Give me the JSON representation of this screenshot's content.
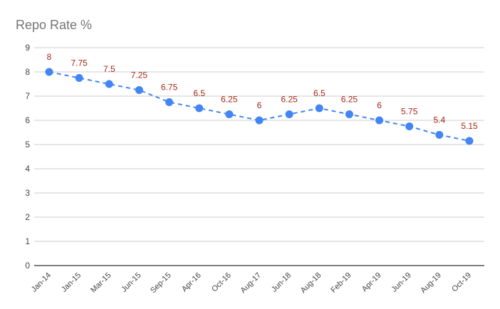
{
  "chart_data": {
    "type": "line",
    "title": "Repo Rate %",
    "xlabel": "",
    "ylabel": "",
    "ylim": [
      0,
      9
    ],
    "yticks": [
      0,
      1,
      2,
      3,
      4,
      5,
      6,
      7,
      8,
      9
    ],
    "grid": true,
    "legend": "none",
    "line_style": "dashed",
    "categories": [
      "Jan-14",
      "Jan-15",
      "Mar-15",
      "Jun-15",
      "Sep-15",
      "Apr-16",
      "Oct-16",
      "Aug-17",
      "Jun-18",
      "Aug-18",
      "Feb-19",
      "Apr-19",
      "Jun-19",
      "Aug-19",
      "Oct-19"
    ],
    "series": [
      {
        "values": [
          8,
          7.75,
          7.5,
          7.25,
          6.75,
          6.5,
          6.25,
          6,
          6.25,
          6.5,
          6.25,
          6,
          5.75,
          5.4,
          5.15
        ],
        "data_labels": [
          "8",
          "7.75",
          "7.5",
          "7.25",
          "6.75",
          "6.5",
          "6.25",
          "6",
          "6.25",
          "6.5",
          "6.25",
          "6",
          "5.75",
          "5.4",
          "5.15"
        ]
      }
    ],
    "colors": {
      "series": "#4285f4",
      "data_label": "#a52714",
      "grid": "#cccccc",
      "axis": "#333333"
    }
  }
}
